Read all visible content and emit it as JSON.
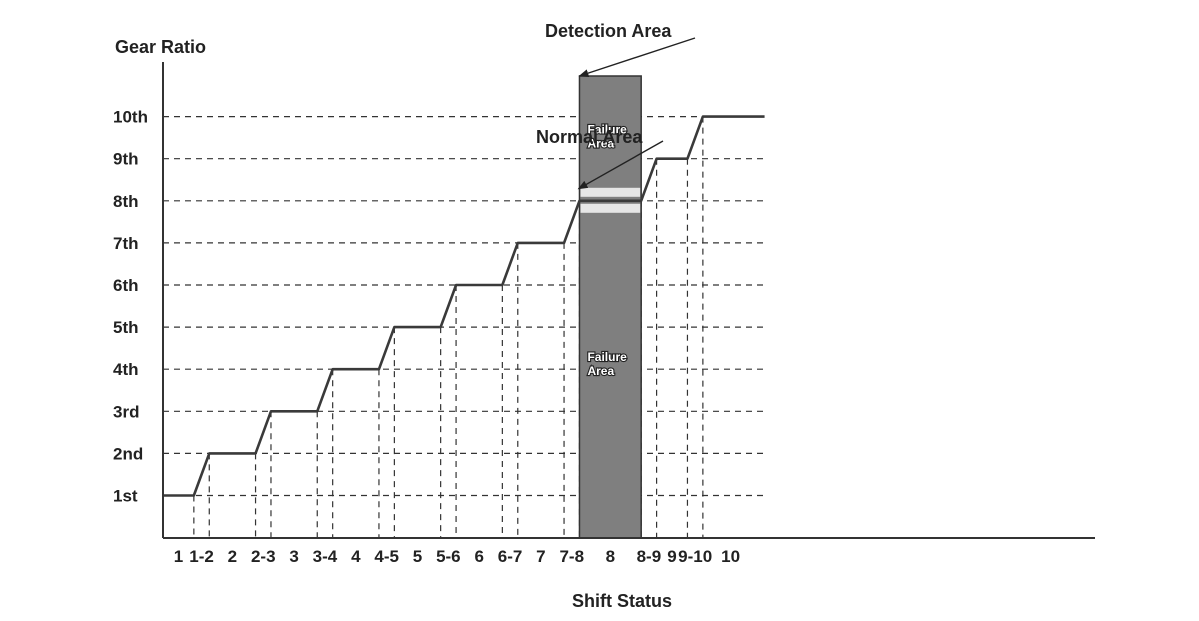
{
  "chart_data": {
    "type": "line",
    "title": "",
    "xlabel": "Shift Status",
    "ylabel": "Gear Ratio",
    "categories": [
      "1",
      "1-2",
      "2",
      "2-3",
      "3",
      "3-4",
      "4",
      "4-5",
      "5",
      "5-6",
      "6",
      "6-7",
      "7",
      "7-8",
      "8",
      "8-9",
      "9",
      "9-10",
      "10"
    ],
    "y_ticks": [
      "1st",
      "2nd",
      "3rd",
      "4th",
      "5th",
      "6th",
      "7th",
      "8th",
      "9th",
      "10th"
    ],
    "ylim": [
      1,
      10
    ],
    "grid": "horizontal dashed at each gear; vertical dashed at each shift start/end",
    "series": [
      {
        "name": "",
        "points": [
          [
            0.0,
            1
          ],
          [
            1.0,
            1
          ],
          [
            1.5,
            2
          ],
          [
            3.0,
            2
          ],
          [
            3.5,
            3
          ],
          [
            5.0,
            3
          ],
          [
            5.5,
            4
          ],
          [
            7.0,
            4
          ],
          [
            7.5,
            5
          ],
          [
            9.0,
            5
          ],
          [
            9.5,
            6
          ],
          [
            11.0,
            6
          ],
          [
            11.5,
            7
          ],
          [
            13.0,
            7
          ],
          [
            13.5,
            8
          ],
          [
            15.5,
            8
          ],
          [
            16.0,
            9
          ],
          [
            17.0,
            9
          ],
          [
            17.5,
            10
          ],
          [
            19.5,
            10
          ]
        ]
      }
    ],
    "regions": [
      {
        "name": "Detection Area",
        "x_category": "8",
        "color": "#7f7f7f",
        "normal_band": {
          "label": "Normal Area",
          "gear": "8th",
          "color": "#e6e6e6"
        },
        "labels": [
          {
            "text": "Failure Area",
            "gear": 9.6
          },
          {
            "text": "Failure Area",
            "gear": 4.2
          }
        ]
      }
    ],
    "annotations": [
      {
        "text": "Detection Area",
        "points_to": "top of detection area"
      },
      {
        "text": "Normal Area",
        "points_to": "normal band at 8th"
      }
    ]
  }
}
